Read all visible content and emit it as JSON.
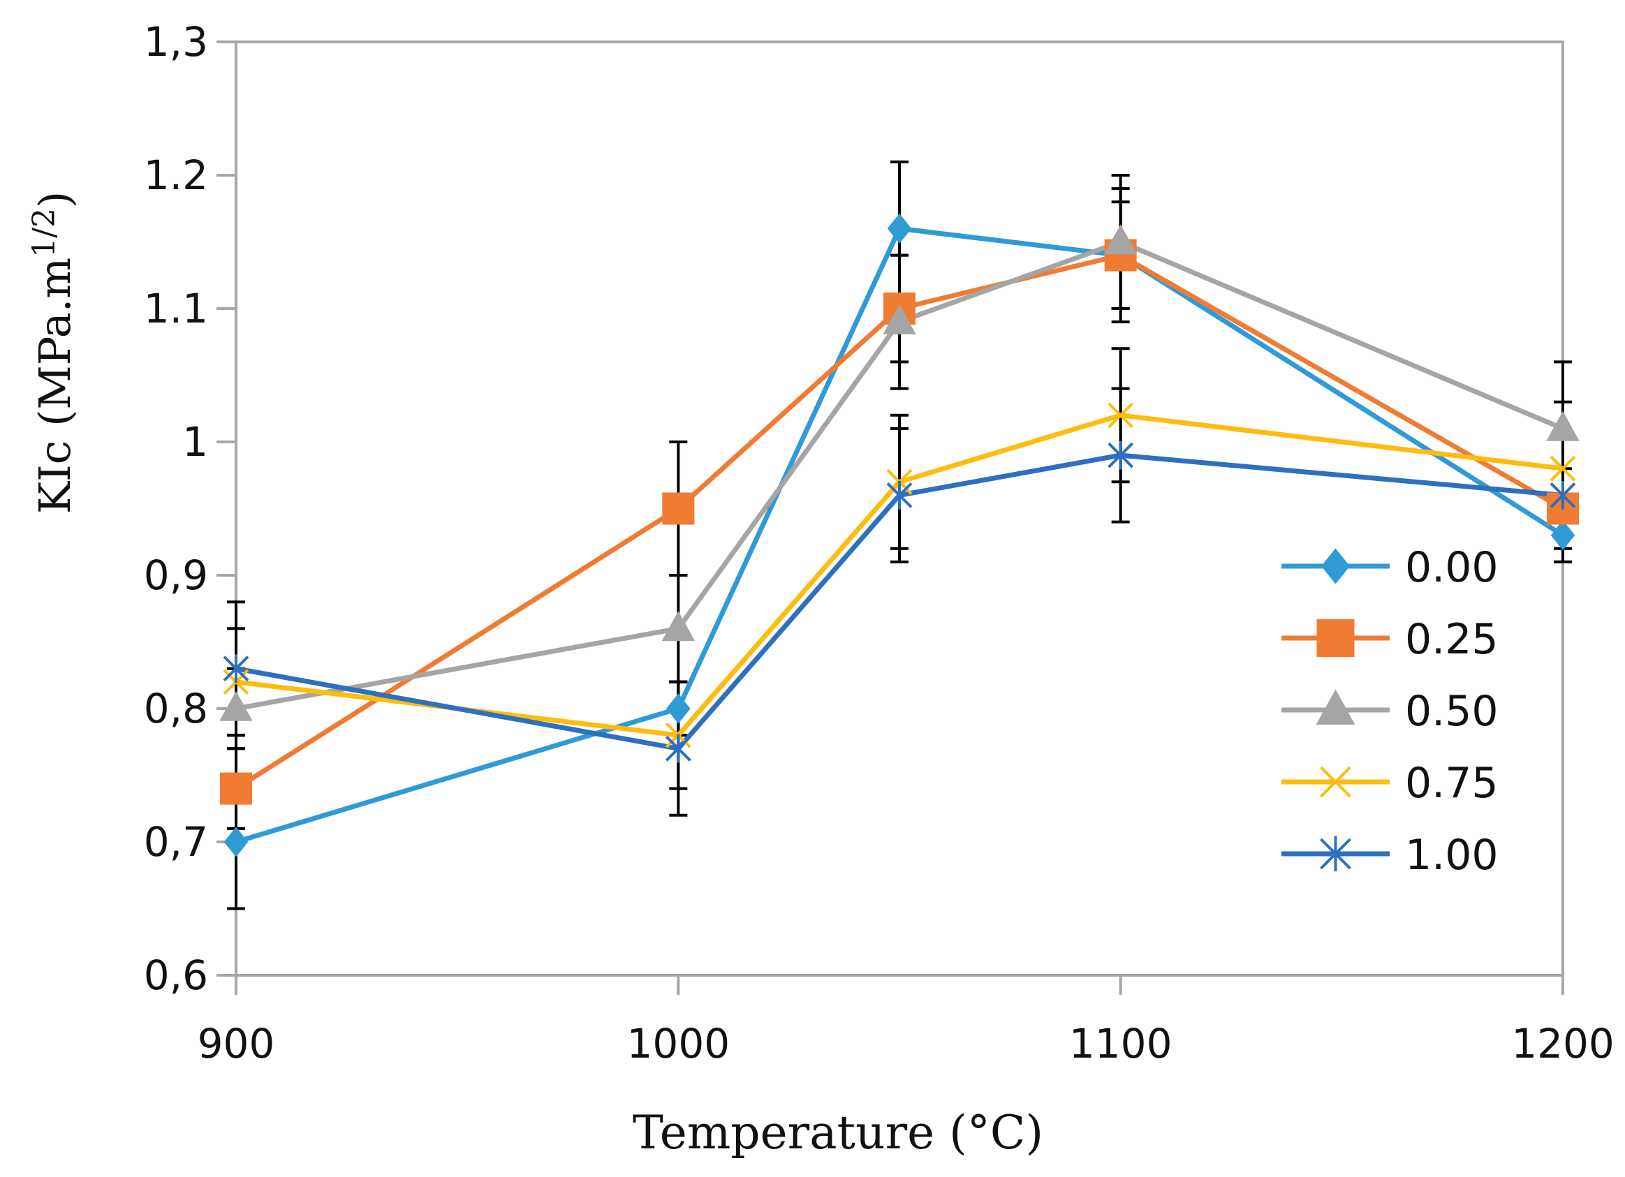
{
  "chart_data": {
    "type": "line",
    "title": "",
    "xlabel": "Temperature (°C)",
    "ylabel": "KIc (MPa.m",
    "ylabel_superscript": "1/2",
    "ylabel_close": ")",
    "x": [
      900,
      1000,
      1050,
      1100,
      1200
    ],
    "xlim": [
      900,
      1200
    ],
    "ylim": [
      0.6,
      1.3
    ],
    "xticks": [
      900,
      1000,
      1100,
      1200
    ],
    "xtick_labels": [
      "900",
      "1000",
      "1100",
      "1200"
    ],
    "yticks": [
      0.6,
      0.7,
      0.8,
      0.9,
      1.0,
      1.1,
      1.2,
      1.3
    ],
    "ytick_labels": [
      "0,6",
      "0,7",
      "0,8",
      "0,9",
      "1",
      "1.1",
      "1.2",
      "1,3"
    ],
    "grid": false,
    "legend_position": "right",
    "series": [
      {
        "name": "0.00",
        "color": "#2e9bd6",
        "marker": "diamond",
        "values": [
          0.7,
          0.8,
          1.16,
          1.14,
          0.93
        ],
        "errors": [
          0.05,
          0.02,
          0.05,
          0.04,
          0.02
        ]
      },
      {
        "name": "0.25",
        "color": "#f07c34",
        "marker": "square",
        "values": [
          0.74,
          0.95,
          1.1,
          1.14,
          0.95
        ],
        "errors": [
          0.03,
          0.05,
          0.04,
          0.05,
          0.03
        ]
      },
      {
        "name": "0.50",
        "color": "#a5a5a5",
        "marker": "triangle",
        "values": [
          0.8,
          0.86,
          1.09,
          1.15,
          1.01
        ],
        "errors": [
          0.03,
          0.04,
          0.05,
          0.05,
          0.05
        ]
      },
      {
        "name": "0.75",
        "color": "#fdbd10",
        "marker": "x",
        "values": [
          0.82,
          0.78,
          0.97,
          1.02,
          0.98
        ],
        "errors": [
          0.04,
          0.04,
          0.05,
          0.05,
          0.05
        ]
      },
      {
        "name": "1.00",
        "color": "#2e6fc0",
        "marker": "star",
        "values": [
          0.83,
          0.77,
          0.96,
          0.99,
          0.96
        ],
        "errors": [
          0.05,
          0.05,
          0.05,
          0.05,
          0.05
        ]
      }
    ]
  }
}
